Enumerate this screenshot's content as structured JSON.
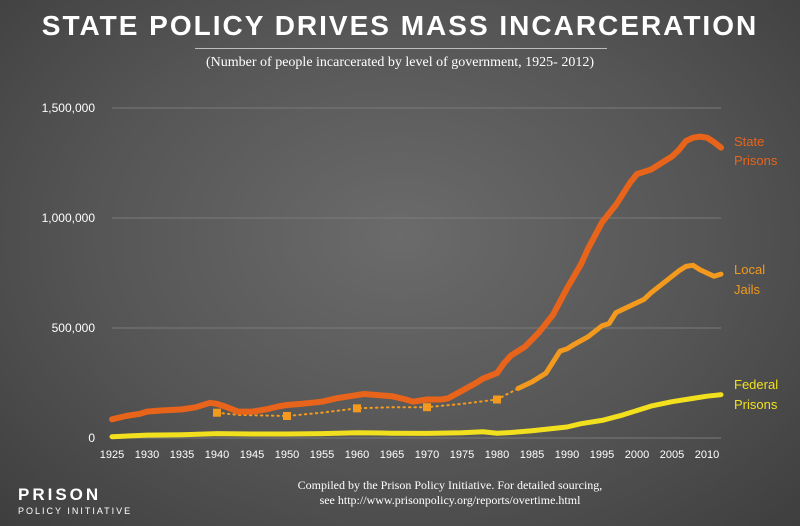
{
  "title": "STATE POLICY DRIVES MASS INCARCERATION",
  "subtitle": "(Number of people incarcerated by level of government, 1925- 2012)",
  "footer": {
    "line1": "Compiled by the Prison Policy Initiative. For detailed sourcing,",
    "line2": "see http://www.prisonpolicy.org/reports/overtime.html"
  },
  "logo": {
    "line1": "PRISON",
    "line2": "POLICY INITIATIVE"
  },
  "colors": {
    "state": "#e8641a",
    "jails": "#f39a1e",
    "federal": "#f2e01e",
    "grid": "#7a7a7a",
    "text": "#ffffff"
  },
  "chart_data": {
    "type": "line",
    "ylim": [
      0,
      1500000
    ],
    "xlim": [
      1925,
      2012
    ],
    "yticks": [
      {
        "value": 0,
        "label": "0"
      },
      {
        "value": 500000,
        "label": "500,000"
      },
      {
        "value": 1000000,
        "label": "1,000,000"
      },
      {
        "value": 1500000,
        "label": "1,500,000"
      }
    ],
    "xticks": [
      {
        "value": 1925,
        "label": "1925"
      },
      {
        "value": 1930,
        "label": "1930"
      },
      {
        "value": 1935,
        "label": "1935"
      },
      {
        "value": 1940,
        "label": "1940"
      },
      {
        "value": 1945,
        "label": "1945"
      },
      {
        "value": 1950,
        "label": "1950"
      },
      {
        "value": 1955,
        "label": "1955"
      },
      {
        "value": 1960,
        "label": "1960"
      },
      {
        "value": 1965,
        "label": "1965"
      },
      {
        "value": 1970,
        "label": "1970"
      },
      {
        "value": 1975,
        "label": "1975"
      },
      {
        "value": 1980,
        "label": "1980"
      },
      {
        "value": 1985,
        "label": "1985"
      },
      {
        "value": 1990,
        "label": "1990"
      },
      {
        "value": 1995,
        "label": "1995"
      },
      {
        "value": 2000,
        "label": "2000"
      },
      {
        "value": 2005,
        "label": "2005"
      },
      {
        "value": 2010,
        "label": "2010"
      }
    ],
    "series": [
      {
        "key": "state",
        "label_lines": [
          "State",
          "Prisons"
        ],
        "points": [
          [
            1925,
            85000
          ],
          [
            1927,
            100000
          ],
          [
            1929,
            110000
          ],
          [
            1930,
            120000
          ],
          [
            1932,
            125000
          ],
          [
            1935,
            130000
          ],
          [
            1937,
            140000
          ],
          [
            1939,
            160000
          ],
          [
            1940,
            155000
          ],
          [
            1941,
            145000
          ],
          [
            1943,
            120000
          ],
          [
            1945,
            120000
          ],
          [
            1947,
            130000
          ],
          [
            1949,
            145000
          ],
          [
            1950,
            150000
          ],
          [
            1952,
            155000
          ],
          [
            1955,
            165000
          ],
          [
            1957,
            180000
          ],
          [
            1959,
            190000
          ],
          [
            1961,
            200000
          ],
          [
            1963,
            195000
          ],
          [
            1965,
            190000
          ],
          [
            1967,
            175000
          ],
          [
            1968,
            165000
          ],
          [
            1970,
            175000
          ],
          [
            1972,
            175000
          ],
          [
            1973,
            180000
          ],
          [
            1975,
            215000
          ],
          [
            1977,
            250000
          ],
          [
            1978,
            270000
          ],
          [
            1980,
            295000
          ],
          [
            1981,
            340000
          ],
          [
            1982,
            375000
          ],
          [
            1984,
            415000
          ],
          [
            1986,
            480000
          ],
          [
            1988,
            560000
          ],
          [
            1990,
            680000
          ],
          [
            1992,
            790000
          ],
          [
            1993,
            860000
          ],
          [
            1995,
            980000
          ],
          [
            1997,
            1060000
          ],
          [
            1999,
            1160000
          ],
          [
            2000,
            1200000
          ],
          [
            2001,
            1210000
          ],
          [
            2002,
            1220000
          ],
          [
            2003,
            1240000
          ],
          [
            2005,
            1280000
          ],
          [
            2006,
            1310000
          ],
          [
            2007,
            1350000
          ],
          [
            2008,
            1365000
          ],
          [
            2009,
            1370000
          ],
          [
            2010,
            1365000
          ],
          [
            2011,
            1345000
          ],
          [
            2012,
            1320000
          ]
        ]
      },
      {
        "key": "jails",
        "label_lines": [
          "Local",
          "Jails"
        ],
        "points": [
          [
            1983,
            225000
          ],
          [
            1985,
            255000
          ],
          [
            1987,
            295000
          ],
          [
            1989,
            395000
          ],
          [
            1990,
            405000
          ],
          [
            1991,
            425000
          ],
          [
            1993,
            460000
          ],
          [
            1995,
            510000
          ],
          [
            1996,
            520000
          ],
          [
            1997,
            570000
          ],
          [
            1999,
            600000
          ],
          [
            2001,
            630000
          ],
          [
            2002,
            660000
          ],
          [
            2004,
            710000
          ],
          [
            2006,
            760000
          ],
          [
            2007,
            780000
          ],
          [
            2008,
            785000
          ],
          [
            2009,
            765000
          ],
          [
            2010,
            750000
          ],
          [
            2011,
            735000
          ],
          [
            2012,
            745000
          ]
        ],
        "dotted_points": [
          [
            1940,
            115000
          ],
          [
            1943,
            105000
          ],
          [
            1950,
            100000
          ],
          [
            1955,
            115000
          ],
          [
            1960,
            135000
          ],
          [
            1965,
            140000
          ],
          [
            1970,
            140000
          ],
          [
            1975,
            155000
          ],
          [
            1980,
            175000
          ],
          [
            1983,
            225000
          ]
        ],
        "markers": [
          [
            1940,
            115000
          ],
          [
            1950,
            100000
          ],
          [
            1960,
            135000
          ],
          [
            1970,
            140000
          ],
          [
            1980,
            175000
          ]
        ]
      },
      {
        "key": "federal",
        "label_lines": [
          "Federal",
          "Prisons"
        ],
        "points": [
          [
            1925,
            6000
          ],
          [
            1930,
            13000
          ],
          [
            1935,
            15000
          ],
          [
            1940,
            20000
          ],
          [
            1945,
            18000
          ],
          [
            1950,
            18000
          ],
          [
            1955,
            20000
          ],
          [
            1960,
            24000
          ],
          [
            1965,
            22000
          ],
          [
            1970,
            21000
          ],
          [
            1975,
            24000
          ],
          [
            1978,
            28000
          ],
          [
            1980,
            22000
          ],
          [
            1982,
            25000
          ],
          [
            1985,
            33000
          ],
          [
            1990,
            50000
          ],
          [
            1992,
            65000
          ],
          [
            1995,
            80000
          ],
          [
            1998,
            105000
          ],
          [
            2000,
            125000
          ],
          [
            2002,
            145000
          ],
          [
            2005,
            165000
          ],
          [
            2008,
            180000
          ],
          [
            2010,
            190000
          ],
          [
            2012,
            197000
          ]
        ]
      }
    ]
  }
}
